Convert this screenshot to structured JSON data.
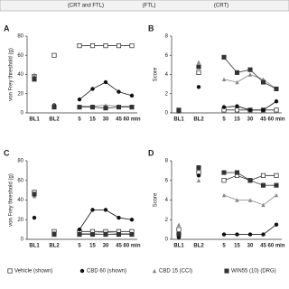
{
  "header": {
    "labels": [
      "(CRT and FTL)",
      "(FTL)",
      "(CRT)"
    ]
  },
  "chart_data": [
    {
      "type": "line",
      "label": "A",
      "y_label": "von Frey threshold (g)",
      "categories": [
        "BL1",
        "BL2",
        "5",
        "15",
        "30",
        "45",
        "60 min"
      ],
      "ylim": [
        0,
        80
      ],
      "yticks": [
        0,
        20,
        40,
        60,
        80
      ],
      "series": [
        {
          "name": "Vehicle (shown)",
          "marker": "square-open",
          "color": "#222",
          "values": [
            38,
            60,
            70,
            70,
            70,
            70,
            70
          ]
        },
        {
          "name": "CBD 60 (shown)",
          "marker": "circle",
          "color": "#111",
          "values": [
            36,
            8,
            14,
            25,
            32,
            22,
            18
          ]
        },
        {
          "name": "CBD 15 (CCI)",
          "marker": "triangle",
          "color": "#888",
          "values": [
            40,
            8,
            7,
            7,
            8,
            7,
            7
          ]
        },
        {
          "name": "WIN55 (10) (DRG)",
          "marker": "square",
          "color": "#333",
          "values": [
            35,
            6,
            6,
            6,
            5,
            6,
            6
          ]
        }
      ]
    },
    {
      "type": "line",
      "label": "B",
      "y_label": "Score",
      "categories": [
        "BL1",
        "BL2",
        "5",
        "15",
        "30",
        "45",
        "60 min"
      ],
      "ylim": [
        0,
        8
      ],
      "yticks": [
        0,
        2,
        4,
        6,
        8
      ],
      "series": [
        {
          "marker": "square-open",
          "color": "#222",
          "values": [
            0.2,
            4.2,
            0.3,
            0.3,
            0.3,
            0.3,
            0.3
          ]
        },
        {
          "marker": "circle",
          "color": "#111",
          "values": [
            0.2,
            2.7,
            0.6,
            0.7,
            0.3,
            0.3,
            1.2
          ]
        },
        {
          "marker": "triangle",
          "color": "#888",
          "values": [
            0.3,
            5.3,
            3.5,
            3.2,
            4,
            3.5,
            2.5
          ]
        },
        {
          "marker": "square",
          "color": "#333",
          "values": [
            0.3,
            4.8,
            5.8,
            4.2,
            4.5,
            3.2,
            2.5
          ]
        }
      ]
    },
    {
      "type": "line",
      "label": "C",
      "y_label": "von Frey threshold (g)",
      "categories": [
        "BL1",
        "BL2",
        "5",
        "15",
        "30",
        "45",
        "60 min"
      ],
      "ylim": [
        0,
        80
      ],
      "yticks": [
        0,
        20,
        40,
        60,
        80
      ],
      "series": [
        {
          "marker": "square-open",
          "color": "#222",
          "values": [
            48,
            8,
            8,
            8,
            8,
            8,
            8
          ]
        },
        {
          "marker": "circle",
          "color": "#111",
          "values": [
            22,
            6,
            10,
            30,
            30,
            22,
            20
          ]
        },
        {
          "marker": "triangle",
          "color": "#888",
          "values": [
            44,
            7,
            6,
            6,
            7,
            6,
            6
          ]
        },
        {
          "marker": "square",
          "color": "#333",
          "values": [
            46,
            5,
            5,
            5,
            5,
            5,
            5
          ]
        }
      ]
    },
    {
      "type": "line",
      "label": "D",
      "y_label": "Score",
      "categories": [
        "BL1",
        "BL2",
        "5",
        "15",
        "30",
        "45",
        "60 min"
      ],
      "ylim": [
        0,
        8
      ],
      "yticks": [
        0,
        2,
        4,
        6,
        8
      ],
      "series": [
        {
          "marker": "square-open",
          "color": "#222",
          "values": [
            1,
            6.8,
            6,
            6.5,
            6,
            6.5,
            6.5
          ]
        },
        {
          "marker": "circle",
          "color": "#111",
          "values": [
            0.2,
            6.5,
            0.5,
            0.5,
            0.5,
            0.5,
            1.5
          ]
        },
        {
          "marker": "triangle",
          "color": "#888",
          "values": [
            1.5,
            6,
            4.5,
            4,
            4,
            3.5,
            4.5
          ]
        },
        {
          "marker": "square",
          "color": "#333",
          "values": [
            0.5,
            7.3,
            6.8,
            6.8,
            6,
            5.5,
            5.5
          ]
        }
      ]
    }
  ]
}
